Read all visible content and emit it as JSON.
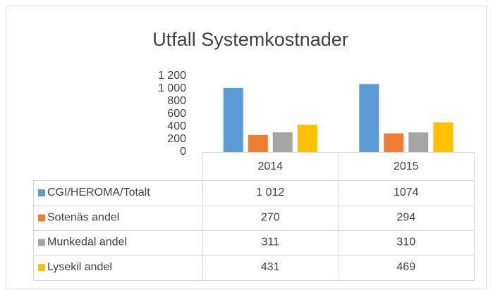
{
  "chart_data": {
    "type": "bar",
    "title": "Utfall Systemkostnader",
    "categories": [
      "2014",
      "2015"
    ],
    "series": [
      {
        "name": "CGI/HEROMA/Totalt",
        "color": "#5b9bd5",
        "values": [
          1012,
          1074
        ],
        "value_labels": [
          "1 012",
          "1074"
        ]
      },
      {
        "name": "Sotenäs andel",
        "color": "#ed7d31",
        "values": [
          270,
          294
        ]
      },
      {
        "name": "Munkedal andel",
        "color": "#a5a5a5",
        "values": [
          311,
          310
        ]
      },
      {
        "name": "Lysekil andel",
        "color": "#ffc000",
        "values": [
          431,
          469
        ]
      }
    ],
    "ylim": [
      0,
      1200
    ],
    "yticks": [
      0,
      200,
      400,
      600,
      800,
      {
        "value": 1000,
        "label": "1 000"
      },
      {
        "value": 1200,
        "label": "1 200"
      }
    ]
  }
}
